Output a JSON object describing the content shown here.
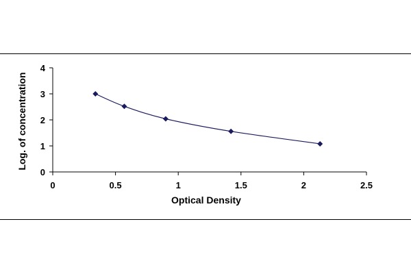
{
  "chart_data": {
    "type": "line",
    "xlabel": "Optical Density",
    "ylabel": "Log. of concentration",
    "xlim": [
      0,
      2.5
    ],
    "ylim": [
      0,
      4
    ],
    "x_ticks": [
      "0",
      "0.5",
      "1",
      "1.5",
      "2",
      "2.5"
    ],
    "y_ticks": [
      "0",
      "1",
      "2",
      "3",
      "4"
    ],
    "grid": false,
    "legend": "none",
    "marker": "diamond",
    "series": [
      {
        "x": [
          0.34,
          0.57,
          0.9,
          1.42,
          2.13
        ],
        "y": [
          3.0,
          2.52,
          2.04,
          1.56,
          1.08
        ]
      }
    ],
    "colors": {
      "series": "#1a1a5e",
      "axis": "#000000"
    }
  }
}
